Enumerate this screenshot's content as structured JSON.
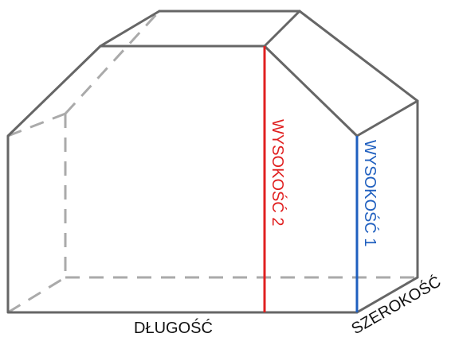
{
  "labels": {
    "height2": "WYSOKOŚĆ 2",
    "height1": "WYSOKOŚĆ 1",
    "length": "DŁUGOŚĆ",
    "width": "SZEROKOŚĆ"
  },
  "colors": {
    "edge": "#666666",
    "hidden_edge": "#aaaaaa",
    "height2": "#e02020",
    "height1": "#1f5fbf",
    "text": "#111111"
  }
}
